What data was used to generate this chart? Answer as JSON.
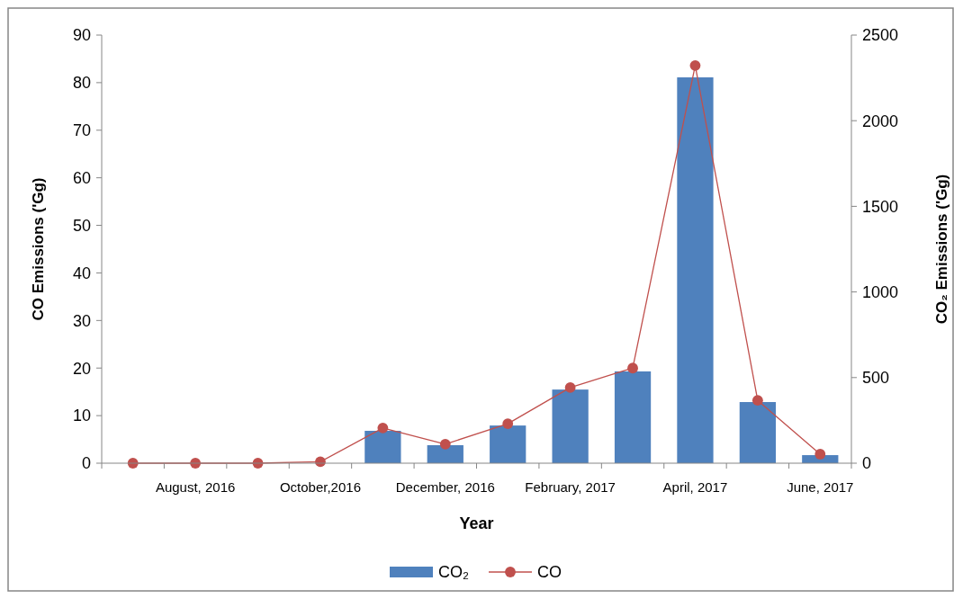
{
  "chart_data": {
    "type": "bar",
    "xlabel": "Year",
    "ylabel": "CO Emissions ('Gg)",
    "y2label": "CO₂ Emissions ('Gg)",
    "categories": [
      null,
      "August, 2016",
      null,
      "October,2016",
      null,
      "December, 2016",
      null,
      "February, 2017",
      null,
      "April, 2017",
      null,
      "June, 2017"
    ],
    "series": [
      {
        "name": "CO₂",
        "axis": "y2",
        "color": "#4f81bd",
        "values": [
          0,
          0,
          0,
          0,
          189,
          105,
          220,
          430,
          536,
          2253,
          357,
          47
        ]
      },
      {
        "name": "CO",
        "type": "line",
        "axis": "y",
        "color": "#c0504d",
        "marker": "circle",
        "values": [
          0,
          0,
          0,
          0.3,
          7.4,
          4.0,
          8.3,
          15.9,
          20.0,
          83.6,
          13.2,
          1.9
        ]
      }
    ],
    "ylim": [
      0,
      90
    ],
    "yticks": [
      0,
      10,
      20,
      30,
      40,
      50,
      60,
      70,
      80,
      90
    ],
    "y2lim": [
      0,
      2500
    ],
    "y2ticks": [
      0,
      500,
      1000,
      1500,
      2000,
      2500
    ],
    "legend": "bottom"
  }
}
